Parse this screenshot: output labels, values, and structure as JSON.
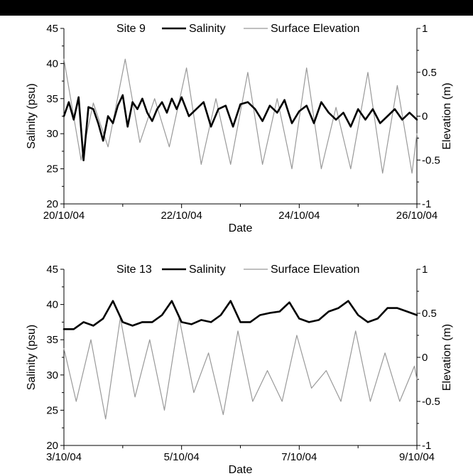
{
  "chart_data": [
    {
      "type": "line",
      "title": "Site 9",
      "xlabel": "Date",
      "ylabel": "Salinity (psu)",
      "y2label": "Elevation (m)",
      "xlim": [
        "2004-10-20",
        "2004-10-26"
      ],
      "xticks": [
        "20/10/04",
        "22/10/04",
        "24/10/04",
        "26/10/04"
      ],
      "ylim": [
        20,
        45
      ],
      "yticks": [
        "20",
        "25",
        "30",
        "35",
        "40",
        "45"
      ],
      "y2lim": [
        -1,
        1
      ],
      "y2ticks": [
        "-1",
        "-0.5",
        "0",
        "0.5",
        "1"
      ],
      "legend_position": "top",
      "series": [
        {
          "name": "Salinity",
          "axis": "left",
          "color": "#000000",
          "x": [
            "2004-10-20T00:00",
            "2004-10-20T02:00",
            "2004-10-20T04:00",
            "2004-10-20T06:00",
            "2004-10-20T08:00",
            "2004-10-20T10:00",
            "2004-10-20T12:00",
            "2004-10-20T14:00",
            "2004-10-20T16:00",
            "2004-10-20T18:00",
            "2004-10-20T20:00",
            "2004-10-20T22:00",
            "2004-10-21T00:00",
            "2004-10-21T02:00",
            "2004-10-21T04:00",
            "2004-10-21T06:00",
            "2004-10-21T08:00",
            "2004-10-21T10:00",
            "2004-10-21T12:00",
            "2004-10-21T14:00",
            "2004-10-21T16:00",
            "2004-10-21T18:00",
            "2004-10-21T20:00",
            "2004-10-21T22:00",
            "2004-10-22T00:00",
            "2004-10-22T03:00",
            "2004-10-22T06:00",
            "2004-10-22T09:00",
            "2004-10-22T12:00",
            "2004-10-22T15:00",
            "2004-10-22T18:00",
            "2004-10-22T21:00",
            "2004-10-23T00:00",
            "2004-10-23T03:00",
            "2004-10-23T06:00",
            "2004-10-23T09:00",
            "2004-10-23T12:00",
            "2004-10-23T15:00",
            "2004-10-23T18:00",
            "2004-10-23T21:00",
            "2004-10-24T00:00",
            "2004-10-24T03:00",
            "2004-10-24T06:00",
            "2004-10-24T09:00",
            "2004-10-24T12:00",
            "2004-10-24T15:00",
            "2004-10-24T18:00",
            "2004-10-24T21:00",
            "2004-10-25T00:00",
            "2004-10-25T03:00",
            "2004-10-25T06:00",
            "2004-10-25T09:00",
            "2004-10-25T12:00",
            "2004-10-25T15:00",
            "2004-10-25T18:00",
            "2004-10-25T21:00",
            "2004-10-26T00:00"
          ],
          "y": [
            32.5,
            34.5,
            32.0,
            35.2,
            26.2,
            33.8,
            33.5,
            31.5,
            29.0,
            32.5,
            31.5,
            34.0,
            35.5,
            31.0,
            34.5,
            33.5,
            35.0,
            33.0,
            31.8,
            33.5,
            34.5,
            33.0,
            35.0,
            33.5,
            35.2,
            32.5,
            33.5,
            34.5,
            31.0,
            33.5,
            34.0,
            31.0,
            34.2,
            34.5,
            33.5,
            31.8,
            34.0,
            33.0,
            34.8,
            31.5,
            33.2,
            34.0,
            31.5,
            34.5,
            33.0,
            32.0,
            33.0,
            31.0,
            33.5,
            32.0,
            33.5,
            31.5,
            32.5,
            33.5,
            32.0,
            33.0,
            32.0
          ]
        },
        {
          "name": "Surface Elevation",
          "axis": "right",
          "color": "#999999",
          "x": [
            "2004-10-20T00:00",
            "2004-10-20T07:00",
            "2004-10-20T12:00",
            "2004-10-20T18:00",
            "2004-10-21T01:00",
            "2004-10-21T07:00",
            "2004-10-21T13:00",
            "2004-10-21T19:00",
            "2004-10-22T02:00",
            "2004-10-22T08:00",
            "2004-10-22T14:00",
            "2004-10-22T20:00",
            "2004-10-23T03:00",
            "2004-10-23T09:00",
            "2004-10-23T15:00",
            "2004-10-23T21:00",
            "2004-10-24T03:00",
            "2004-10-24T09:00",
            "2004-10-24T15:00",
            "2004-10-24T21:00",
            "2004-10-25T04:00",
            "2004-10-25T10:00",
            "2004-10-25T16:00",
            "2004-10-25T22:00",
            "2004-10-26T00:00"
          ],
          "y": [
            0.65,
            -0.5,
            0.15,
            -0.35,
            0.65,
            -0.3,
            0.2,
            -0.35,
            0.55,
            -0.55,
            0.2,
            -0.55,
            0.5,
            -0.55,
            0.2,
            -0.6,
            0.55,
            -0.6,
            0.1,
            -0.6,
            0.5,
            -0.65,
            0.35,
            -0.65,
            -0.2
          ]
        }
      ]
    },
    {
      "type": "line",
      "title": "Site 13",
      "xlabel": "Date",
      "ylabel": "Salinity (psu)",
      "y2label": "Elevation (m)",
      "xlim": [
        "2004-10-03",
        "2004-10-09"
      ],
      "xticks": [
        "3/10/04",
        "5/10/04",
        "7/10/04",
        "9/10/04"
      ],
      "ylim": [
        20,
        45
      ],
      "yticks": [
        "20",
        "25",
        "30",
        "35",
        "40",
        "45"
      ],
      "y2lim": [
        -1,
        1
      ],
      "y2ticks": [
        "-1",
        "-0.5",
        "0",
        "0.5",
        "1"
      ],
      "legend_position": "top",
      "series": [
        {
          "name": "Salinity",
          "axis": "left",
          "color": "#000000",
          "x": [
            "2004-10-03T00:00",
            "2004-10-03T04:00",
            "2004-10-03T08:00",
            "2004-10-03T12:00",
            "2004-10-03T16:00",
            "2004-10-03T20:00",
            "2004-10-04T00:00",
            "2004-10-04T04:00",
            "2004-10-04T08:00",
            "2004-10-04T12:00",
            "2004-10-04T16:00",
            "2004-10-04T20:00",
            "2004-10-05T00:00",
            "2004-10-05T04:00",
            "2004-10-05T08:00",
            "2004-10-05T12:00",
            "2004-10-05T16:00",
            "2004-10-05T20:00",
            "2004-10-06T00:00",
            "2004-10-06T04:00",
            "2004-10-06T08:00",
            "2004-10-06T12:00",
            "2004-10-06T16:00",
            "2004-10-06T20:00",
            "2004-10-07T00:00",
            "2004-10-07T04:00",
            "2004-10-07T08:00",
            "2004-10-07T12:00",
            "2004-10-07T16:00",
            "2004-10-07T20:00",
            "2004-10-08T00:00",
            "2004-10-08T04:00",
            "2004-10-08T08:00",
            "2004-10-08T12:00",
            "2004-10-08T16:00",
            "2004-10-08T20:00",
            "2004-10-09T00:00"
          ],
          "y": [
            36.5,
            36.5,
            37.5,
            37.0,
            38.0,
            40.5,
            37.5,
            37.0,
            37.5,
            37.5,
            38.5,
            40.5,
            37.5,
            37.2,
            37.8,
            37.5,
            38.5,
            40.5,
            37.5,
            37.5,
            38.5,
            38.8,
            39.0,
            40.3,
            38.0,
            37.5,
            37.8,
            39.0,
            39.5,
            40.5,
            38.5,
            37.5,
            38.0,
            39.5,
            39.5,
            39.0,
            38.5
          ]
        },
        {
          "name": "Surface Elevation",
          "axis": "right",
          "color": "#999999",
          "x": [
            "2004-10-03T00:00",
            "2004-10-03T05:00",
            "2004-10-03T11:00",
            "2004-10-03T17:00",
            "2004-10-03T23:00",
            "2004-10-04T05:00",
            "2004-10-04T11:00",
            "2004-10-04T17:00",
            "2004-10-04T23:00",
            "2004-10-05T05:00",
            "2004-10-05T11:00",
            "2004-10-05T17:00",
            "2004-10-05T23:00",
            "2004-10-06T05:00",
            "2004-10-06T11:00",
            "2004-10-06T17:00",
            "2004-10-06T23:00",
            "2004-10-07T05:00",
            "2004-10-07T11:00",
            "2004-10-07T17:00",
            "2004-10-07T23:00",
            "2004-10-08T05:00",
            "2004-10-08T11:00",
            "2004-10-08T17:00",
            "2004-10-08T23:00",
            "2004-10-09T00:00"
          ],
          "y": [
            0.1,
            -0.5,
            0.2,
            -0.7,
            0.45,
            -0.45,
            0.2,
            -0.6,
            0.45,
            -0.4,
            0.05,
            -0.65,
            0.3,
            -0.5,
            -0.15,
            -0.5,
            0.25,
            -0.35,
            -0.15,
            -0.5,
            0.3,
            -0.5,
            0.05,
            -0.5,
            -0.1,
            -0.25
          ]
        }
      ]
    }
  ]
}
